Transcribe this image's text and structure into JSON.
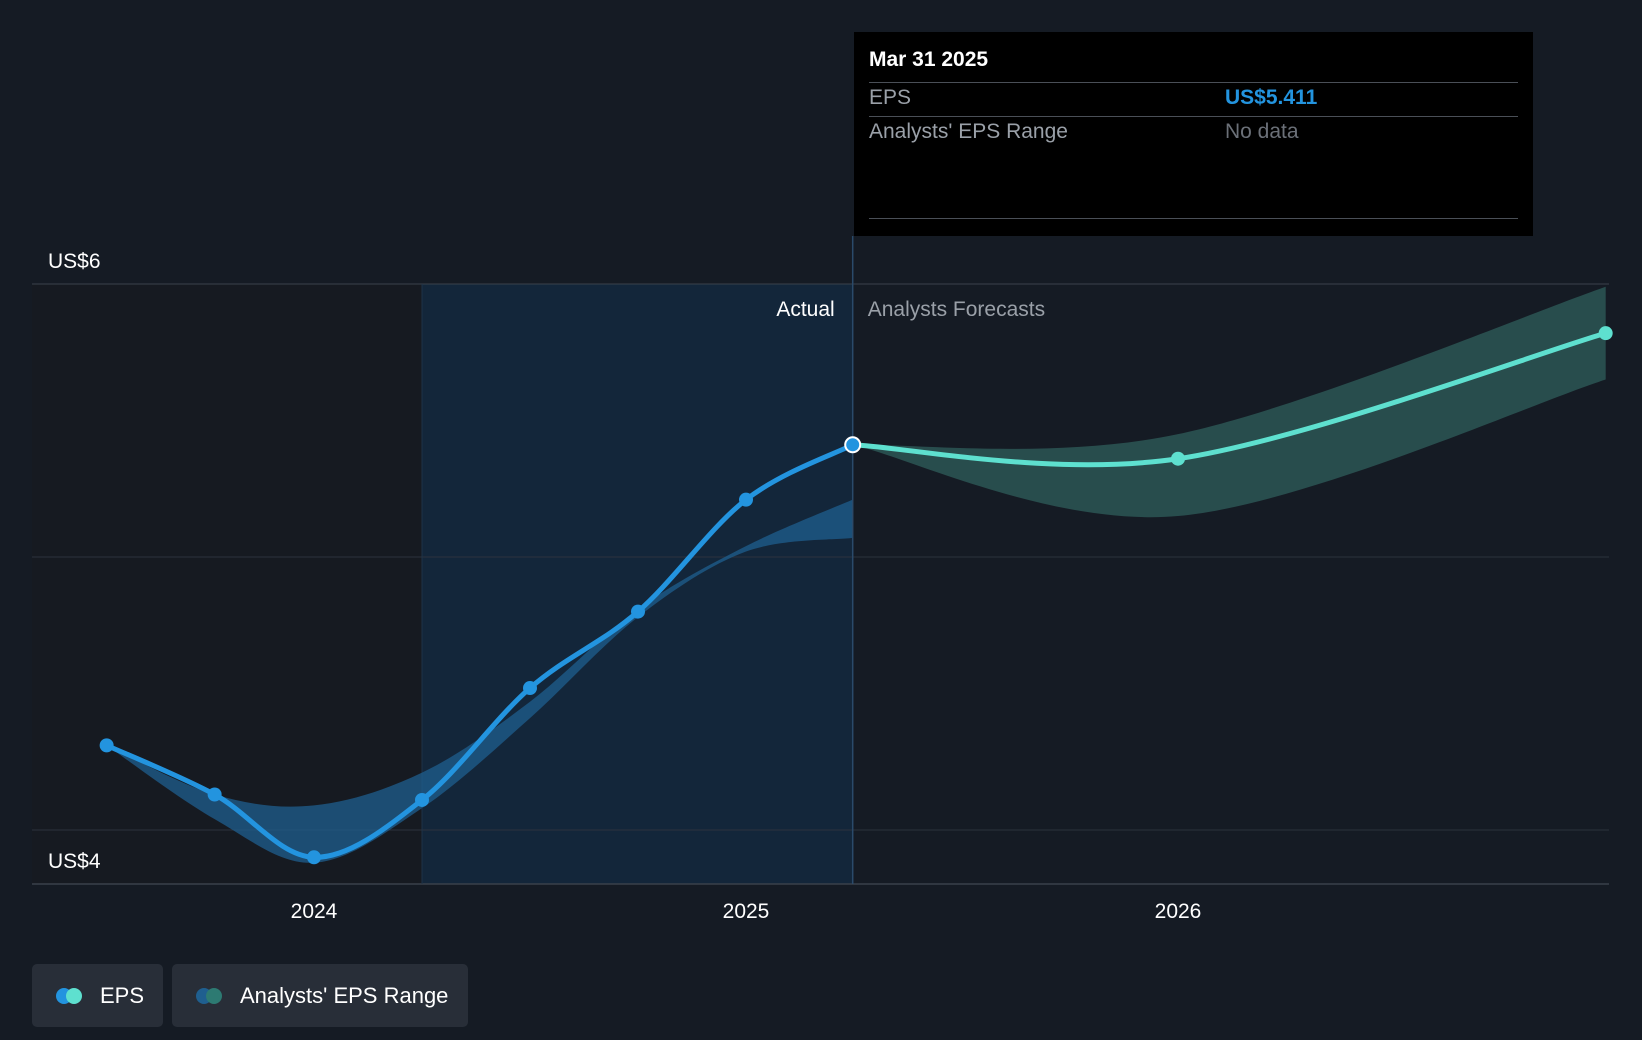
{
  "colors": {
    "background": "#151b24",
    "eps_actual": "#2394df",
    "eps_forecast": "#5ee0cf",
    "range_actual": "#1f5f8f",
    "range_forecast": "#2d5a57",
    "actual_region": "#13263a",
    "grid": "#2c333d"
  },
  "tooltip": {
    "date": "Mar 31 2025",
    "eps_label": "EPS",
    "eps_value": "US$5.411",
    "range_label": "Analysts' EPS Range",
    "range_value": "No data"
  },
  "legend": {
    "eps_label": "EPS",
    "range_label": "Analysts' EPS Range"
  },
  "chart_data": {
    "type": "line",
    "y_tick_labels": [
      "US$6",
      "US$4"
    ],
    "x_tick_labels": [
      "2024",
      "2025",
      "2026"
    ],
    "region_labels": {
      "actual": "Actual",
      "forecast": "Analysts Forecasts"
    },
    "ylim": [
      3.8,
      6.0
    ],
    "xlim": [
      2023.5,
      2026.99
    ],
    "x_ticks": [
      2024,
      2025,
      2026
    ],
    "grid": true,
    "series": [
      {
        "kind": "eps_actual",
        "x": [
          2023.52,
          2023.77,
          2024.0,
          2024.25,
          2024.5,
          2024.75,
          2025.0,
          2025.247
        ],
        "y": [
          4.31,
          4.13,
          3.9,
          4.11,
          4.52,
          4.8,
          5.21,
          5.411
        ]
      },
      {
        "kind": "eps_forecast",
        "x": [
          2025.247,
          2026.0,
          2026.99
        ],
        "y": [
          5.411,
          5.36,
          5.82
        ]
      }
    ],
    "range_actual": {
      "x": [
        2023.52,
        2023.77,
        2024.0,
        2024.25,
        2024.5,
        2024.75,
        2025.0,
        2025.247
      ],
      "low": [
        4.31,
        4.04,
        3.88,
        4.08,
        4.41,
        4.78,
        5.02,
        5.07
      ],
      "high": [
        4.31,
        4.13,
        4.09,
        4.21,
        4.47,
        4.81,
        5.04,
        5.21
      ]
    },
    "range_forecast": {
      "x": [
        2025.247,
        2026.0,
        2026.99
      ],
      "low": [
        5.411,
        5.15,
        5.65
      ],
      "high": [
        5.411,
        5.45,
        5.99
      ]
    },
    "legend_position": "bottom-left"
  }
}
